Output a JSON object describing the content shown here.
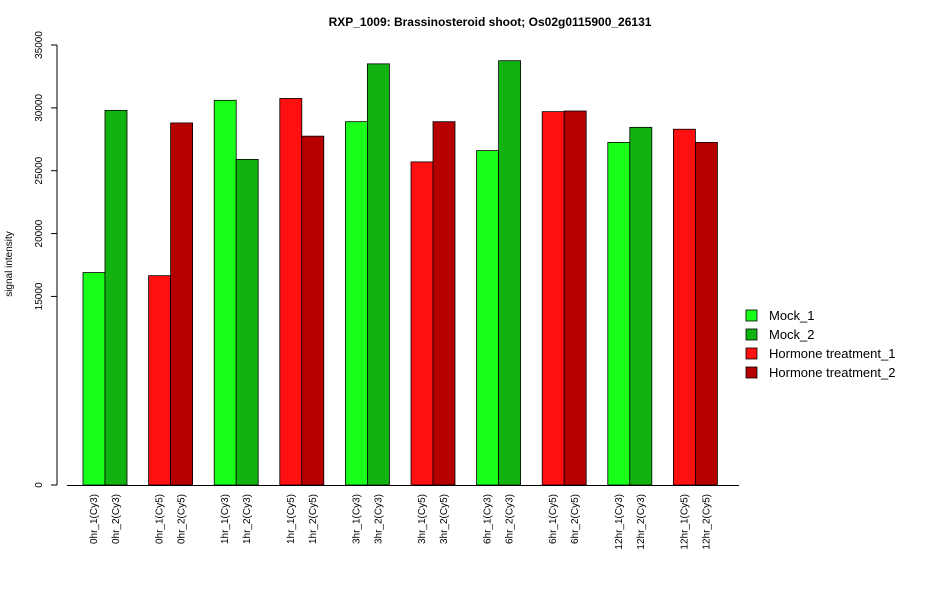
{
  "chart_data": {
    "type": "bar",
    "title": "RXP_1009: Brassinosteroid shoot; Os02g0115900_26131",
    "xlabel": "",
    "ylabel": "signal intensity",
    "ylim": [
      0,
      35000
    ],
    "yticks": [
      0,
      15000,
      20000,
      25000,
      30000,
      35000
    ],
    "grid": false,
    "legend_position": "right",
    "legend": [
      {
        "name": "Mock_1",
        "color": "#19ff19"
      },
      {
        "name": "Mock_2",
        "color": "#11b311"
      },
      {
        "name": "Hormone treatment_1",
        "color": "#ff1010"
      },
      {
        "name": "Hormone treatment_2",
        "color": "#b60000"
      }
    ],
    "bars": [
      {
        "label": "0hr_1(Cy3)",
        "value": 16900,
        "series": 0
      },
      {
        "label": "0hr_2(Cy3)",
        "value": 29800,
        "series": 1
      },
      {
        "label": "0hr_1(Cy5)",
        "value": 16650,
        "series": 2
      },
      {
        "label": "0hr_2(Cy5)",
        "value": 28800,
        "series": 3
      },
      {
        "label": "1hr_1(Cy3)",
        "value": 30600,
        "series": 0
      },
      {
        "label": "1hr_2(Cy3)",
        "value": 25900,
        "series": 1
      },
      {
        "label": "1hr_1(Cy5)",
        "value": 30750,
        "series": 2
      },
      {
        "label": "1hr_2(Cy5)",
        "value": 27750,
        "series": 3
      },
      {
        "label": "3hr_1(Cy3)",
        "value": 28900,
        "series": 0
      },
      {
        "label": "3hr_2(Cy3)",
        "value": 33500,
        "series": 1
      },
      {
        "label": "3hr_1(Cy5)",
        "value": 25700,
        "series": 2
      },
      {
        "label": "3hr_2(Cy5)",
        "value": 28900,
        "series": 3
      },
      {
        "label": "6hr_1(Cy3)",
        "value": 26600,
        "series": 0
      },
      {
        "label": "6hr_2(Cy3)",
        "value": 33750,
        "series": 1
      },
      {
        "label": "6hr_1(Cy5)",
        "value": 29700,
        "series": 2
      },
      {
        "label": "6hr_2(Cy5)",
        "value": 29750,
        "series": 3
      },
      {
        "label": "12hr_1(Cy3)",
        "value": 27250,
        "series": 0
      },
      {
        "label": "12hr_2(Cy3)",
        "value": 28450,
        "series": 1
      },
      {
        "label": "12hr_1(Cy5)",
        "value": 28300,
        "series": 2
      },
      {
        "label": "12hr_2(Cy5)",
        "value": 27250,
        "series": 3
      }
    ]
  }
}
